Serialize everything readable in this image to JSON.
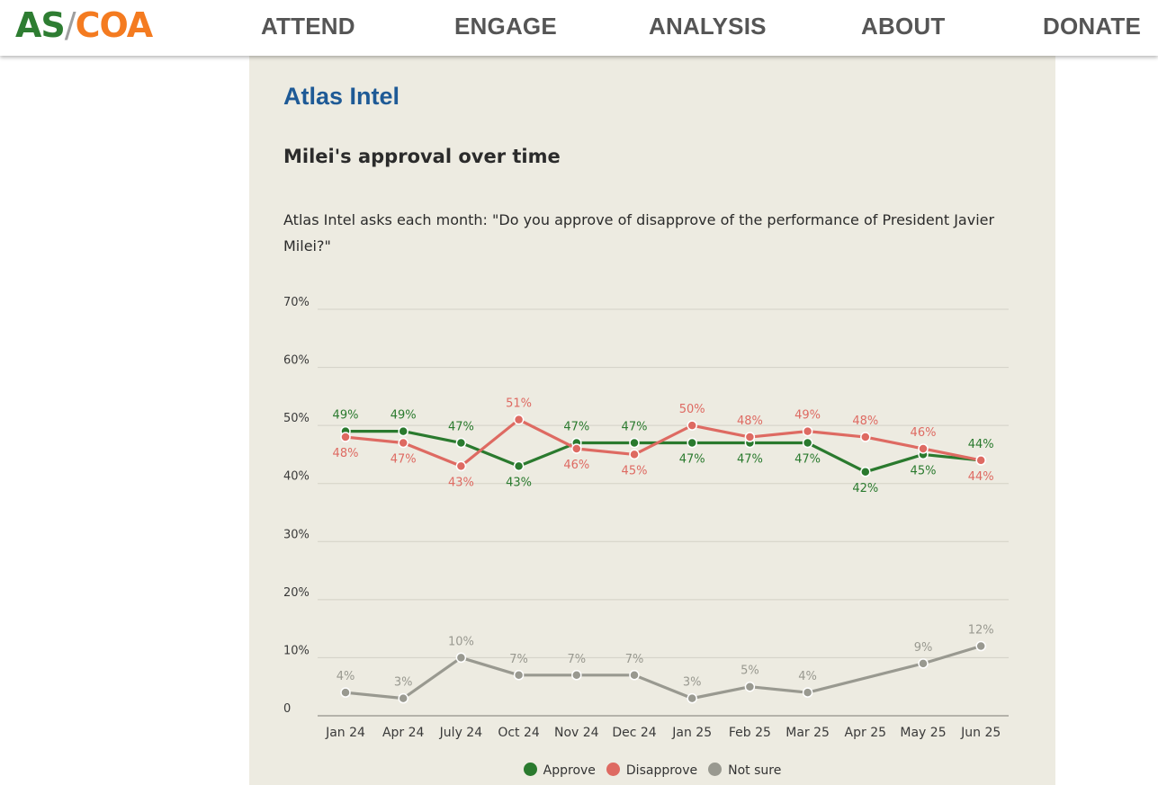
{
  "logo": {
    "as": "AS",
    "slash": "/",
    "coa": "COA"
  },
  "nav": {
    "items": [
      "ATTEND",
      "ENGAGE",
      "ANALYSIS",
      "ABOUT",
      "DONATE"
    ]
  },
  "panel": {
    "org_title": "Atlas Intel",
    "chart_title": "Milei's approval over time",
    "chart_subtitle": "Atlas Intel asks each month: \"Do you approve of disapprove of the performance of President Javier Milei?\""
  },
  "colors": {
    "approve": "#2a7a2e",
    "disapprove": "#de6a62",
    "not_sure": "#999990",
    "panel_bg": "#edebe1",
    "title_blue": "#1e5a96"
  },
  "chart_data": {
    "type": "line",
    "title": "Milei's approval over time",
    "x": [
      "Jan 24",
      "Apr 24",
      "July 24",
      "Oct 24",
      "Nov 24",
      "Dec 24",
      "Jan 25",
      "Feb 25",
      "Mar 25",
      "Apr 25",
      "May 25",
      "Jun 25"
    ],
    "y_ticks": [
      0,
      10,
      20,
      30,
      40,
      50,
      60,
      70
    ],
    "y_tick_labels": [
      "0",
      "10%",
      "20%",
      "30%",
      "40%",
      "50%",
      "60%",
      "70%"
    ],
    "ylim": [
      0,
      70
    ],
    "grid": true,
    "legend_position": "bottom",
    "series": [
      {
        "name": "Approve",
        "color": "#2a7a2e",
        "values": [
          49,
          49,
          47,
          43,
          47,
          47,
          47,
          47,
          47,
          42,
          45,
          44
        ],
        "labels": [
          "49%",
          "49%",
          "47%",
          "43%",
          "47%",
          "47%",
          "47%",
          "47%",
          "47%",
          "42%",
          "45%",
          "44%"
        ]
      },
      {
        "name": "Disapprove",
        "color": "#de6a62",
        "values": [
          48,
          47,
          43,
          51,
          46,
          45,
          50,
          48,
          49,
          48,
          46,
          44
        ],
        "labels": [
          "48%",
          "47%",
          "43%",
          "51%",
          "46%",
          "45%",
          "50%",
          "48%",
          "49%",
          "48%",
          "46%",
          "44%"
        ]
      },
      {
        "name": "Not sure",
        "color": "#999990",
        "values": [
          4,
          3,
          10,
          7,
          7,
          7,
          3,
          5,
          4,
          null,
          9,
          12
        ],
        "labels": [
          "4%",
          "3%",
          "10%",
          "7%",
          "7%",
          "7%",
          "3%",
          "5%",
          "4%",
          null,
          "9%",
          "12%"
        ]
      }
    ]
  }
}
